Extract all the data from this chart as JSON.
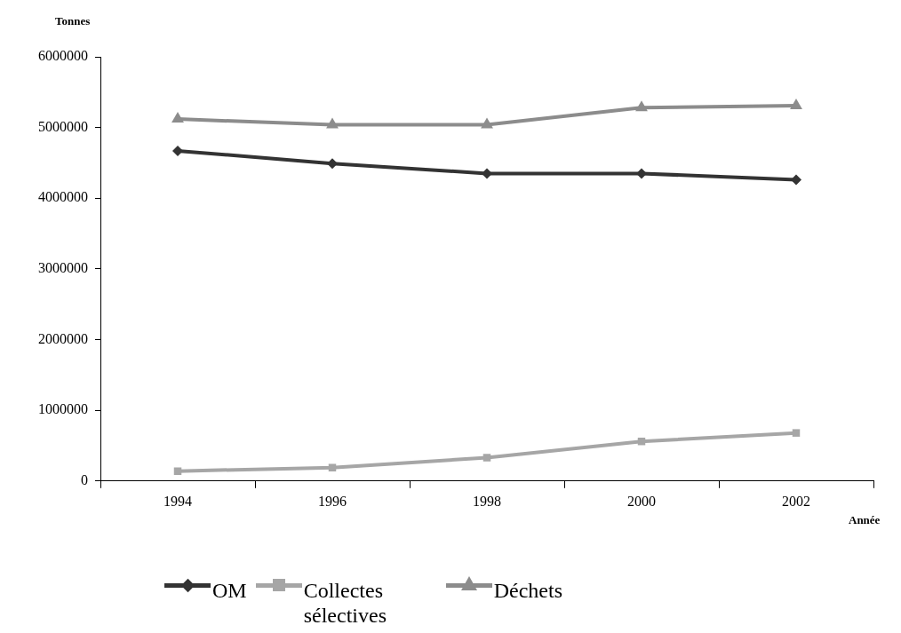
{
  "chart_data": {
    "type": "line",
    "xlabel": "Année",
    "ylabel": "Tonnes",
    "categories": [
      "1994",
      "1996",
      "1998",
      "2000",
      "2002"
    ],
    "series": [
      {
        "name": "OM",
        "color": "#333333",
        "marker": "diamond",
        "values": [
          4670000,
          4490000,
          4350000,
          4350000,
          4260000
        ]
      },
      {
        "name": "Collectes sélectives",
        "color": "#a6a6a6",
        "marker": "square",
        "values": [
          140000,
          190000,
          330000,
          560000,
          680000
        ]
      },
      {
        "name": "Déchets",
        "color": "#8c8c8c",
        "marker": "triangle",
        "values": [
          5120000,
          5040000,
          5040000,
          5280000,
          5310000
        ]
      }
    ],
    "ylim": [
      0,
      6000000
    ],
    "yticks": [
      0,
      1000000,
      2000000,
      3000000,
      4000000,
      5000000,
      6000000
    ],
    "grid": false,
    "legend": "bottom",
    "line_style": "solid"
  }
}
